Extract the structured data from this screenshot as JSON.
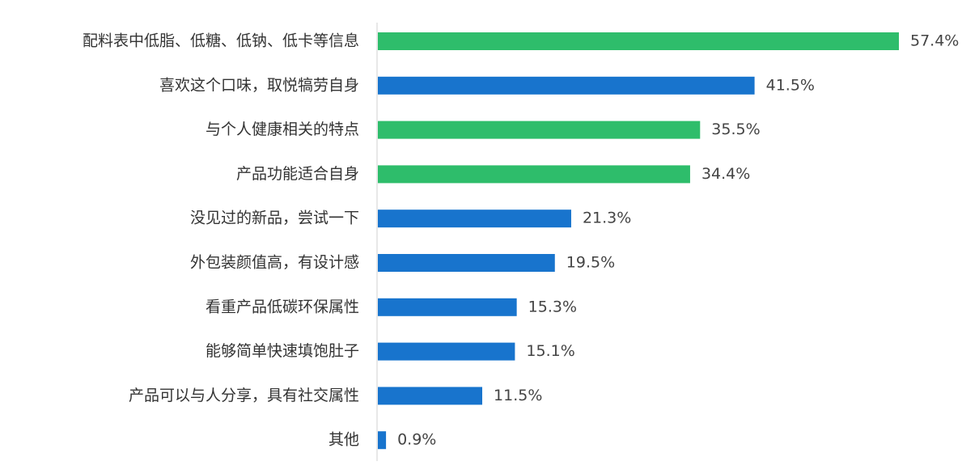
{
  "chart_data": {
    "type": "bar",
    "orientation": "horizontal",
    "title": "",
    "xlabel": "",
    "ylabel": "",
    "xlim": [
      0,
      60
    ],
    "grid": false,
    "legend": "none",
    "value_suffix": "%",
    "colors": {
      "green": "#2EBD6B",
      "blue": "#1874CD",
      "axis": "#D0D0D0"
    },
    "categories": [
      "配料表中低脂、低糖、低钠、低卡等信息",
      "喜欢这个口味，取悦犒劳自身",
      "与个人健康相关的特点",
      "产品功能适合自身",
      "没见过的新品，尝试一下",
      "外包装颜值高，有设计感",
      "看重产品低碳环保属性",
      "能够简单快速填饱肚子",
      "产品可以与人分享，具有社交属性",
      "其他"
    ],
    "values": [
      57.4,
      41.5,
      35.5,
      34.4,
      21.3,
      19.5,
      15.3,
      15.1,
      11.5,
      0.9
    ],
    "bar_colors": [
      "green",
      "blue",
      "green",
      "green",
      "blue",
      "blue",
      "blue",
      "blue",
      "blue",
      "blue"
    ]
  }
}
